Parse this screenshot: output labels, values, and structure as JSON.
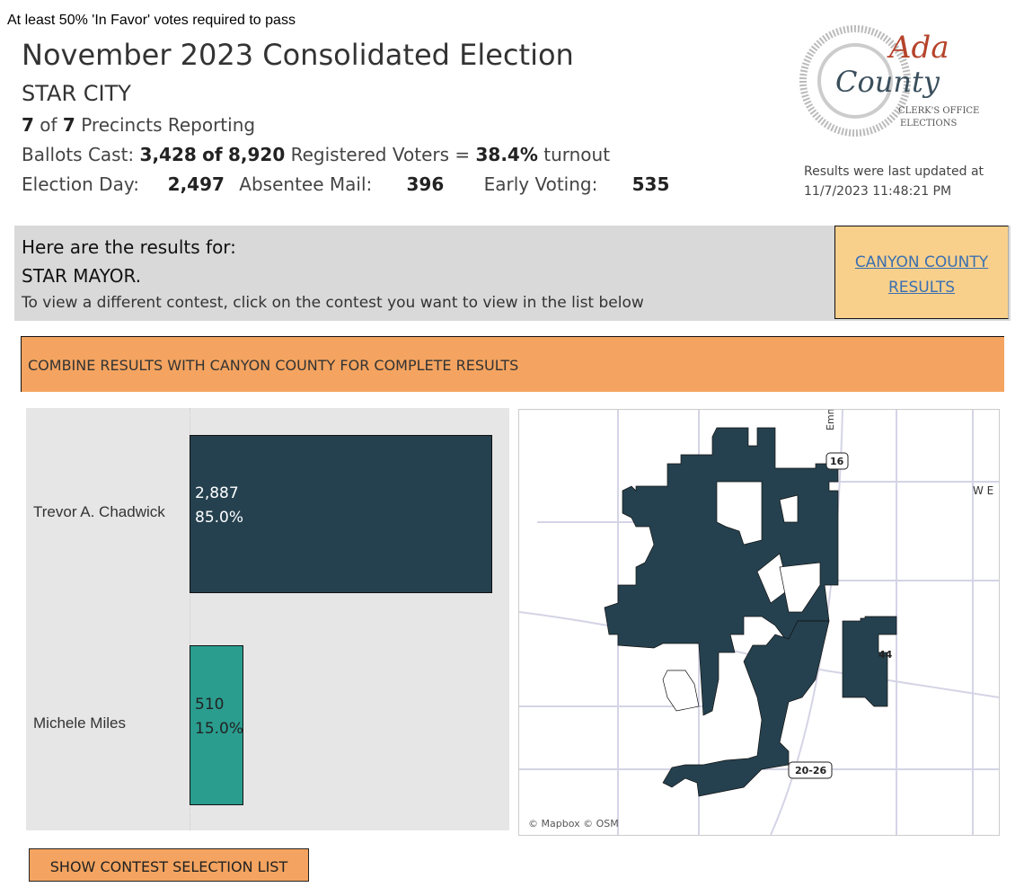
{
  "header": {
    "note": "At least 50% 'In Favor' votes required to pass",
    "title": "November 2023 Consolidated Election",
    "city": "STAR CITY",
    "precincts_reported": "7",
    "precincts_total": "7",
    "precincts_label": "Precincts Reporting",
    "ballots_label": "Ballots Cast:",
    "ballots_cast": "3,428",
    "of": "of",
    "registered": "8,920",
    "registered_label": "Registered Voters =",
    "turnout": "38.4%",
    "turnout_label": "turnout",
    "election_day_label": "Election Day:",
    "election_day": "2,497",
    "absentee_label": "Absentee Mail:",
    "absentee": "396",
    "early_label": "Early Voting:",
    "early": "535",
    "updated_label": "Results were last updated at",
    "updated_time": "11/7/2023 11:48:21 PM",
    "logo_text": "Ada County Clerk's Office Elections"
  },
  "results": {
    "heading": "Here are the results for:",
    "contest": "STAR MAYOR.",
    "instruction": "To view a different contest, click on the contest you want to view in the list below",
    "canyon_link_1": "CANYON COUNTY",
    "canyon_link_2": "RESULTS"
  },
  "banner": "COMBINE RESULTS WITH CANYON COUNTY FOR COMPLETE RESULTS",
  "chart_data": {
    "type": "bar",
    "orientation": "horizontal",
    "categories": [
      "Trevor A. Chadwick",
      "Michele Miles"
    ],
    "values": [
      2887,
      510
    ],
    "labels": [
      "2,887",
      "510"
    ],
    "percents": [
      "85.0%",
      "15.0%"
    ],
    "colors": [
      "#25414f",
      "#2a9d8f"
    ]
  },
  "map": {
    "attribution": "© Mapbox © OSM",
    "shields": [
      "16",
      "44",
      "16",
      "20-26"
    ],
    "street": "Emm",
    "label_right": "W E",
    "fill": "#25414f"
  },
  "show_button": "SHOW CONTEST SELECTION LIST"
}
